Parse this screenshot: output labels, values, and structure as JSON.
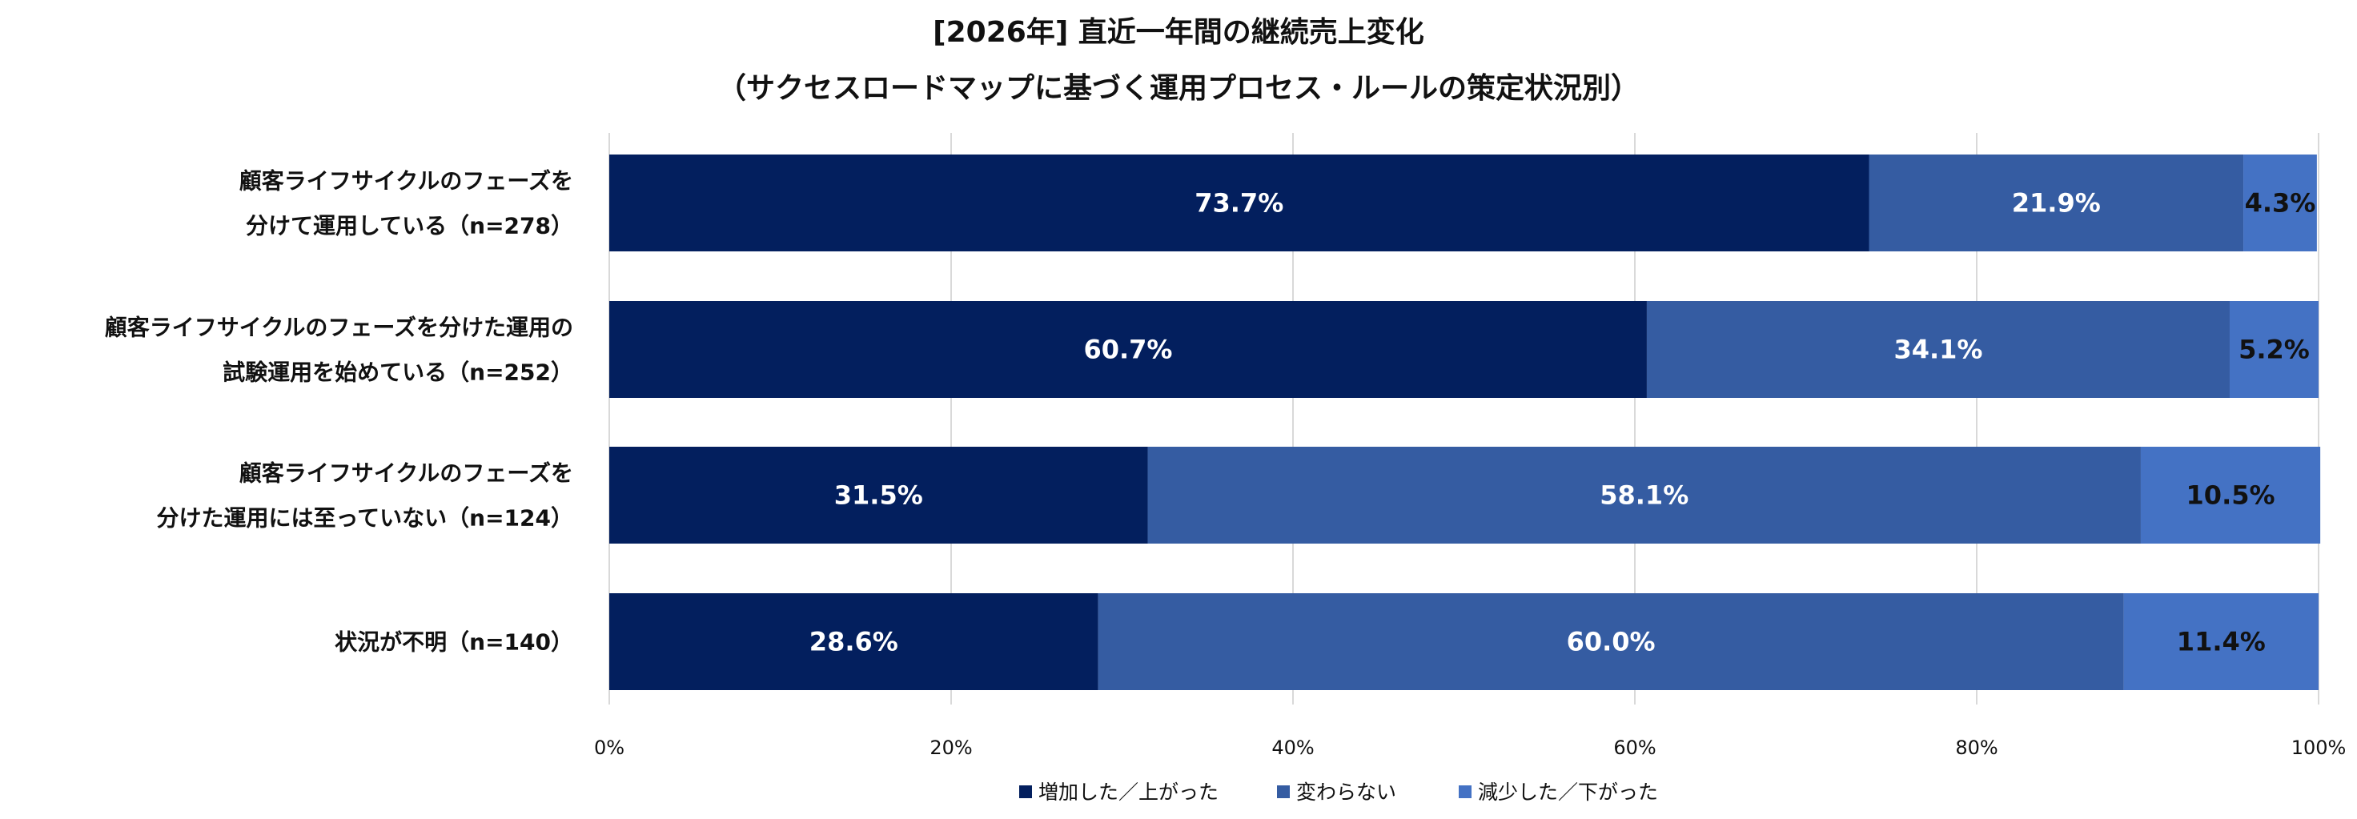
{
  "chart_data": {
    "type": "bar",
    "orientation": "horizontal",
    "stacked": true,
    "title": "[2026年] 直近一年間の継続売上変化",
    "subtitle": "（サクセスロードマップに基づく運用プロセス・ルールの策定状況別）",
    "categories": [
      [
        "顧客ライフサイクルのフェーズを",
        "分けて運用している（n=278）"
      ],
      [
        "顧客ライフサイクルのフェーズを分けた運用の",
        "試験運用を始めている（n=252）"
      ],
      [
        "顧客ライフサイクルのフェーズを",
        "分けた運用には至っていない（n=124）"
      ],
      [
        "状況が不明（n=140）"
      ]
    ],
    "series": [
      {
        "name": "増加した／上がった",
        "color": "#031f5e",
        "label_color": "#ffffff",
        "values": [
          73.7,
          60.7,
          31.5,
          28.6
        ],
        "labels": [
          "73.7%",
          "60.7%",
          "31.5%",
          "28.6%"
        ]
      },
      {
        "name": "変わらない",
        "color": "#355ca2",
        "label_color": "#ffffff",
        "values": [
          21.9,
          34.1,
          58.1,
          60.0
        ],
        "labels": [
          "21.9%",
          "34.1%",
          "58.1%",
          "60.0%"
        ]
      },
      {
        "name": "減少した／下がった",
        "color": "#4472c4",
        "label_color": "#111111",
        "values": [
          4.3,
          5.2,
          10.5,
          11.4
        ],
        "labels": [
          "4.3%",
          "5.2%",
          "10.5%",
          "11.4%"
        ]
      }
    ],
    "xlim": [
      0,
      100
    ],
    "xticks": [
      0,
      20,
      40,
      60,
      80,
      100
    ],
    "xtick_labels": [
      "0%",
      "20%",
      "40%",
      "60%",
      "80%",
      "100%"
    ],
    "grid": true,
    "gridline_color": "#d9d9d9",
    "legend_position": "bottom"
  }
}
